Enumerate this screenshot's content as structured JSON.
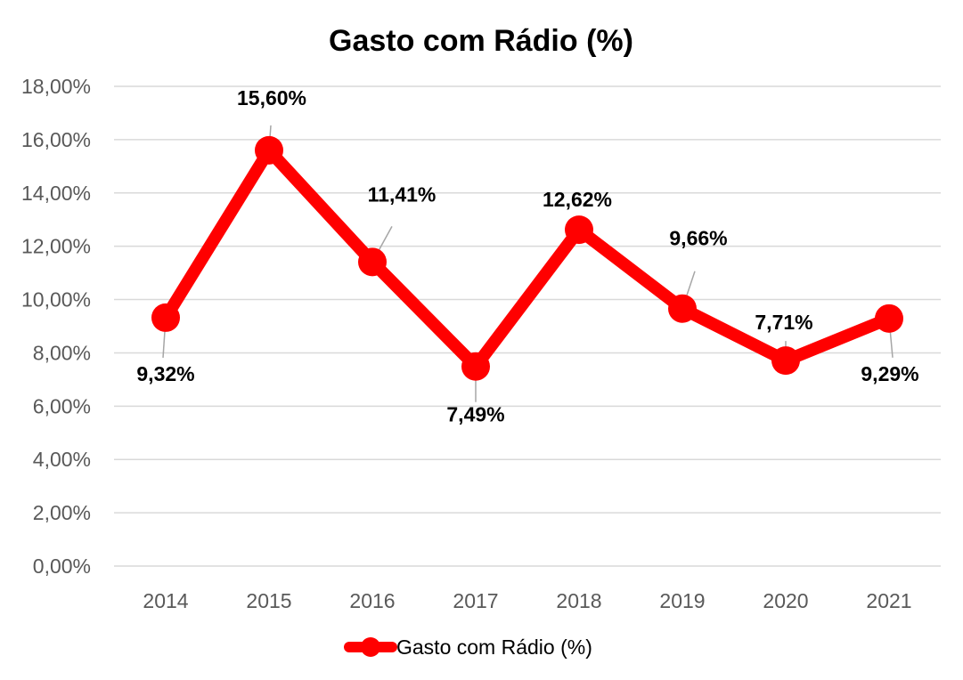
{
  "chart_data": {
    "type": "line",
    "title": "Gasto com Rádio (%)",
    "xlabel": "",
    "ylabel": "",
    "categories": [
      "2014",
      "2015",
      "2016",
      "2017",
      "2018",
      "2019",
      "2020",
      "2021"
    ],
    "series": [
      {
        "name": "Gasto com Rádio (%)",
        "values": [
          9.32,
          15.6,
          11.41,
          7.49,
          12.62,
          9.66,
          7.71,
          9.29
        ],
        "data_labels": [
          "9,32%",
          "15,60%",
          "11,41%",
          "7,49%",
          "12,62%",
          "9,66%",
          "7,71%",
          "9,29%"
        ],
        "color": "#ff0000"
      }
    ],
    "ylim": [
      0,
      18
    ],
    "y_ticks": [
      0,
      2,
      4,
      6,
      8,
      10,
      12,
      14,
      16,
      18
    ],
    "y_tick_labels": [
      "0,00%",
      "2,00%",
      "4,00%",
      "6,00%",
      "8,00%",
      "10,00%",
      "12,00%",
      "14,00%",
      "16,00%",
      "18,00%"
    ],
    "grid": true,
    "legend": "bottom",
    "gridline_color": "#d9d9d9"
  }
}
